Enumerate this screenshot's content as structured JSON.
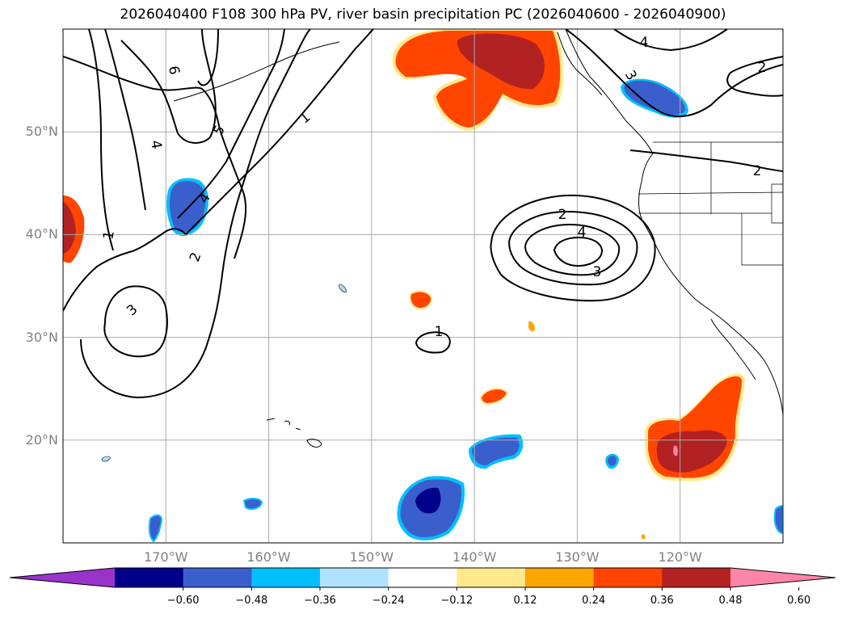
{
  "title": "2026040400 F108 300 hPa PV, river basin precipitation PC (2026040600 - 2026040900)",
  "lat_labels": [
    {
      "lat": 50,
      "text": "50°N"
    },
    {
      "lat": 40,
      "text": "40°N"
    },
    {
      "lat": 30,
      "text": "30°N"
    },
    {
      "lat": 20,
      "text": "20°N"
    }
  ],
  "lon_labels": [
    {
      "lon": -170,
      "text": "170°W"
    },
    {
      "lon": -160,
      "text": "160°W"
    },
    {
      "lon": -150,
      "text": "150°W"
    },
    {
      "lon": -140,
      "text": "140°W"
    },
    {
      "lon": -130,
      "text": "130°W"
    },
    {
      "lon": -120,
      "text": "120°W"
    }
  ],
  "map_extent": {
    "lon_min": -180,
    "lon_max": -110,
    "lat_min": 10,
    "lat_max": 60
  },
  "colorbar": {
    "colors": [
      "#9933cc",
      "#00008b",
      "#3a5fcd",
      "#00bfff",
      "#b0e2ff",
      "#ffffff",
      "#ffe98c",
      "#ffa500",
      "#ff4500",
      "#b22222",
      "#ff85a8"
    ],
    "tick_labels": [
      "−0.60",
      "−0.48",
      "−0.36",
      "−0.24",
      "−0.12",
      "0.12",
      "0.24",
      "0.36",
      "0.48",
      "0.60"
    ]
  },
  "pv_contour_labels": [
    "1",
    "2",
    "3",
    "4",
    "5",
    "6",
    "1",
    "2",
    "3",
    "4",
    "2",
    "3",
    "4",
    "2",
    "1"
  ]
}
